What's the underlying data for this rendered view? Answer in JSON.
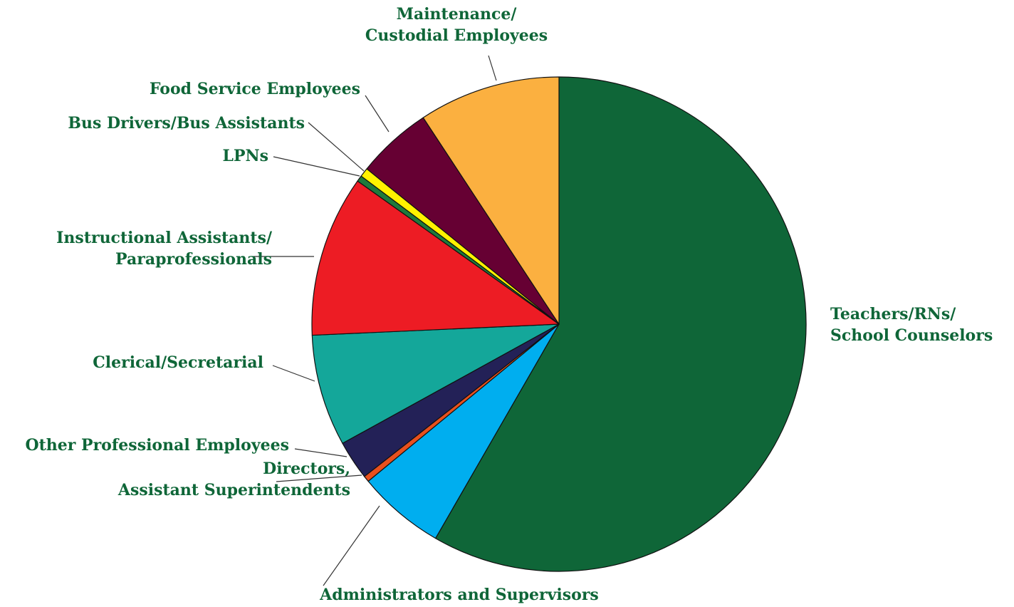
{
  "chart_data": {
    "type": "pie",
    "title": "",
    "colors": {
      "label_text": "#0F6638",
      "outline": "#111111",
      "leader_line": "#333333"
    },
    "slices": [
      {
        "name": "Teachers/RNs/ School Counselors",
        "lines": [
          "Teachers/RNs/",
          "School Counselors"
        ],
        "value": 59.2,
        "color": "#0F6638"
      },
      {
        "name": "Administrators and Supervisors",
        "lines": [
          "Administrators and Supervisors"
        ],
        "value": 5.8,
        "color": "#00AEEF"
      },
      {
        "name": "Directors, Assistant Superintendents",
        "lines": [
          "Directors,",
          "Assistant Superintendents"
        ],
        "value": 0.4,
        "color": "#E8501E"
      },
      {
        "name": "Other Professional Employees",
        "lines": [
          "Other Professional Employees"
        ],
        "value": 2.6,
        "color": "#232157"
      },
      {
        "name": "Clerical/Secretarial",
        "lines": [
          "Clerical/Secretarial"
        ],
        "value": 7.4,
        "color": "#14A79A"
      },
      {
        "name": "Instructional Assistants/ Paraprofessionals",
        "lines": [
          "Instructional Assistants/",
          "Paraprofessionals"
        ],
        "value": 10.7,
        "color": "#ED1C24"
      },
      {
        "name": "LPNs",
        "lines": [
          "LPNs"
        ],
        "value": 0.4,
        "color": "#1E7A3C"
      },
      {
        "name": "Bus Drivers/Bus Assistants",
        "lines": [
          "Bus Drivers/Bus Assistants"
        ],
        "value": 0.6,
        "color": "#FFF200"
      },
      {
        "name": "Food Service Employees",
        "lines": [
          "Food Service Employees"
        ],
        "value": 5.0,
        "color": "#660033"
      },
      {
        "name": "Maintenance/ Custodial Employees",
        "lines": [
          "Maintenance/",
          "Custodial Employees"
        ],
        "value": 9.4,
        "color": "#FBB040"
      }
    ]
  }
}
